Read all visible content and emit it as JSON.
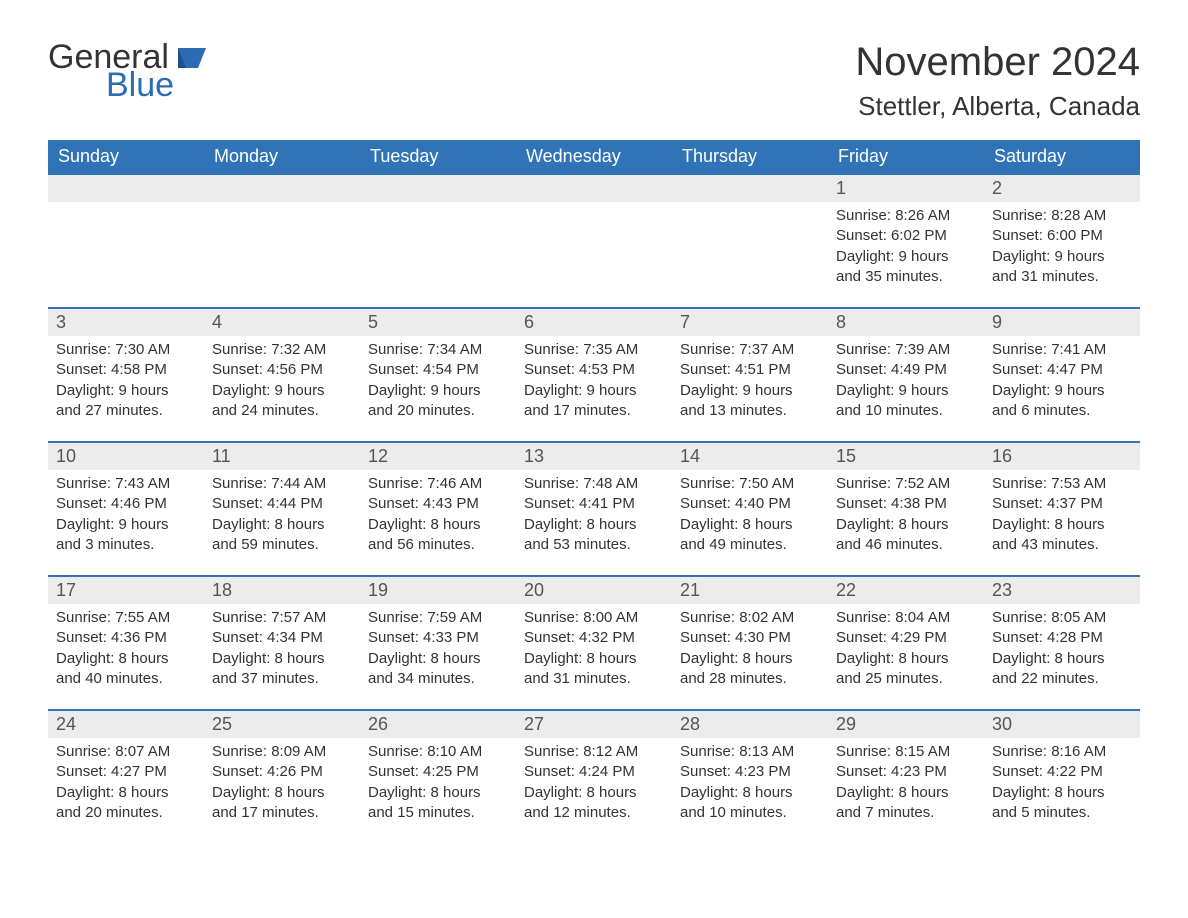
{
  "brand": {
    "word1": "General",
    "word2": "Blue",
    "color_general": "#333333",
    "color_blue": "#2b6cb3",
    "icon_fill": "#2b6cb3"
  },
  "title": {
    "month_year": "November 2024",
    "location": "Stettler, Alberta, Canada"
  },
  "colors": {
    "header_bg": "#3173b7",
    "header_text": "#ffffff",
    "daynum_bg": "#ececec",
    "daynum_border": "#3173b7",
    "body_text": "#333333",
    "page_bg": "#ffffff"
  },
  "typography": {
    "title_fontsize": 40,
    "location_fontsize": 26,
    "header_fontsize": 18,
    "daynum_fontsize": 18,
    "body_fontsize": 15,
    "font_family": "Arial"
  },
  "day_names": [
    "Sunday",
    "Monday",
    "Tuesday",
    "Wednesday",
    "Thursday",
    "Friday",
    "Saturday"
  ],
  "weeks": [
    [
      {
        "num": "",
        "sunrise": "",
        "sunset": "",
        "daylight_l1": "",
        "daylight_l2": ""
      },
      {
        "num": "",
        "sunrise": "",
        "sunset": "",
        "daylight_l1": "",
        "daylight_l2": ""
      },
      {
        "num": "",
        "sunrise": "",
        "sunset": "",
        "daylight_l1": "",
        "daylight_l2": ""
      },
      {
        "num": "",
        "sunrise": "",
        "sunset": "",
        "daylight_l1": "",
        "daylight_l2": ""
      },
      {
        "num": "",
        "sunrise": "",
        "sunset": "",
        "daylight_l1": "",
        "daylight_l2": ""
      },
      {
        "num": "1",
        "sunrise": "Sunrise: 8:26 AM",
        "sunset": "Sunset: 6:02 PM",
        "daylight_l1": "Daylight: 9 hours",
        "daylight_l2": "and 35 minutes."
      },
      {
        "num": "2",
        "sunrise": "Sunrise: 8:28 AM",
        "sunset": "Sunset: 6:00 PM",
        "daylight_l1": "Daylight: 9 hours",
        "daylight_l2": "and 31 minutes."
      }
    ],
    [
      {
        "num": "3",
        "sunrise": "Sunrise: 7:30 AM",
        "sunset": "Sunset: 4:58 PM",
        "daylight_l1": "Daylight: 9 hours",
        "daylight_l2": "and 27 minutes."
      },
      {
        "num": "4",
        "sunrise": "Sunrise: 7:32 AM",
        "sunset": "Sunset: 4:56 PM",
        "daylight_l1": "Daylight: 9 hours",
        "daylight_l2": "and 24 minutes."
      },
      {
        "num": "5",
        "sunrise": "Sunrise: 7:34 AM",
        "sunset": "Sunset: 4:54 PM",
        "daylight_l1": "Daylight: 9 hours",
        "daylight_l2": "and 20 minutes."
      },
      {
        "num": "6",
        "sunrise": "Sunrise: 7:35 AM",
        "sunset": "Sunset: 4:53 PM",
        "daylight_l1": "Daylight: 9 hours",
        "daylight_l2": "and 17 minutes."
      },
      {
        "num": "7",
        "sunrise": "Sunrise: 7:37 AM",
        "sunset": "Sunset: 4:51 PM",
        "daylight_l1": "Daylight: 9 hours",
        "daylight_l2": "and 13 minutes."
      },
      {
        "num": "8",
        "sunrise": "Sunrise: 7:39 AM",
        "sunset": "Sunset: 4:49 PM",
        "daylight_l1": "Daylight: 9 hours",
        "daylight_l2": "and 10 minutes."
      },
      {
        "num": "9",
        "sunrise": "Sunrise: 7:41 AM",
        "sunset": "Sunset: 4:47 PM",
        "daylight_l1": "Daylight: 9 hours",
        "daylight_l2": "and 6 minutes."
      }
    ],
    [
      {
        "num": "10",
        "sunrise": "Sunrise: 7:43 AM",
        "sunset": "Sunset: 4:46 PM",
        "daylight_l1": "Daylight: 9 hours",
        "daylight_l2": "and 3 minutes."
      },
      {
        "num": "11",
        "sunrise": "Sunrise: 7:44 AM",
        "sunset": "Sunset: 4:44 PM",
        "daylight_l1": "Daylight: 8 hours",
        "daylight_l2": "and 59 minutes."
      },
      {
        "num": "12",
        "sunrise": "Sunrise: 7:46 AM",
        "sunset": "Sunset: 4:43 PM",
        "daylight_l1": "Daylight: 8 hours",
        "daylight_l2": "and 56 minutes."
      },
      {
        "num": "13",
        "sunrise": "Sunrise: 7:48 AM",
        "sunset": "Sunset: 4:41 PM",
        "daylight_l1": "Daylight: 8 hours",
        "daylight_l2": "and 53 minutes."
      },
      {
        "num": "14",
        "sunrise": "Sunrise: 7:50 AM",
        "sunset": "Sunset: 4:40 PM",
        "daylight_l1": "Daylight: 8 hours",
        "daylight_l2": "and 49 minutes."
      },
      {
        "num": "15",
        "sunrise": "Sunrise: 7:52 AM",
        "sunset": "Sunset: 4:38 PM",
        "daylight_l1": "Daylight: 8 hours",
        "daylight_l2": "and 46 minutes."
      },
      {
        "num": "16",
        "sunrise": "Sunrise: 7:53 AM",
        "sunset": "Sunset: 4:37 PM",
        "daylight_l1": "Daylight: 8 hours",
        "daylight_l2": "and 43 minutes."
      }
    ],
    [
      {
        "num": "17",
        "sunrise": "Sunrise: 7:55 AM",
        "sunset": "Sunset: 4:36 PM",
        "daylight_l1": "Daylight: 8 hours",
        "daylight_l2": "and 40 minutes."
      },
      {
        "num": "18",
        "sunrise": "Sunrise: 7:57 AM",
        "sunset": "Sunset: 4:34 PM",
        "daylight_l1": "Daylight: 8 hours",
        "daylight_l2": "and 37 minutes."
      },
      {
        "num": "19",
        "sunrise": "Sunrise: 7:59 AM",
        "sunset": "Sunset: 4:33 PM",
        "daylight_l1": "Daylight: 8 hours",
        "daylight_l2": "and 34 minutes."
      },
      {
        "num": "20",
        "sunrise": "Sunrise: 8:00 AM",
        "sunset": "Sunset: 4:32 PM",
        "daylight_l1": "Daylight: 8 hours",
        "daylight_l2": "and 31 minutes."
      },
      {
        "num": "21",
        "sunrise": "Sunrise: 8:02 AM",
        "sunset": "Sunset: 4:30 PM",
        "daylight_l1": "Daylight: 8 hours",
        "daylight_l2": "and 28 minutes."
      },
      {
        "num": "22",
        "sunrise": "Sunrise: 8:04 AM",
        "sunset": "Sunset: 4:29 PM",
        "daylight_l1": "Daylight: 8 hours",
        "daylight_l2": "and 25 minutes."
      },
      {
        "num": "23",
        "sunrise": "Sunrise: 8:05 AM",
        "sunset": "Sunset: 4:28 PM",
        "daylight_l1": "Daylight: 8 hours",
        "daylight_l2": "and 22 minutes."
      }
    ],
    [
      {
        "num": "24",
        "sunrise": "Sunrise: 8:07 AM",
        "sunset": "Sunset: 4:27 PM",
        "daylight_l1": "Daylight: 8 hours",
        "daylight_l2": "and 20 minutes."
      },
      {
        "num": "25",
        "sunrise": "Sunrise: 8:09 AM",
        "sunset": "Sunset: 4:26 PM",
        "daylight_l1": "Daylight: 8 hours",
        "daylight_l2": "and 17 minutes."
      },
      {
        "num": "26",
        "sunrise": "Sunrise: 8:10 AM",
        "sunset": "Sunset: 4:25 PM",
        "daylight_l1": "Daylight: 8 hours",
        "daylight_l2": "and 15 minutes."
      },
      {
        "num": "27",
        "sunrise": "Sunrise: 8:12 AM",
        "sunset": "Sunset: 4:24 PM",
        "daylight_l1": "Daylight: 8 hours",
        "daylight_l2": "and 12 minutes."
      },
      {
        "num": "28",
        "sunrise": "Sunrise: 8:13 AM",
        "sunset": "Sunset: 4:23 PM",
        "daylight_l1": "Daylight: 8 hours",
        "daylight_l2": "and 10 minutes."
      },
      {
        "num": "29",
        "sunrise": "Sunrise: 8:15 AM",
        "sunset": "Sunset: 4:23 PM",
        "daylight_l1": "Daylight: 8 hours",
        "daylight_l2": "and 7 minutes."
      },
      {
        "num": "30",
        "sunrise": "Sunrise: 8:16 AM",
        "sunset": "Sunset: 4:22 PM",
        "daylight_l1": "Daylight: 8 hours",
        "daylight_l2": "and 5 minutes."
      }
    ]
  ]
}
